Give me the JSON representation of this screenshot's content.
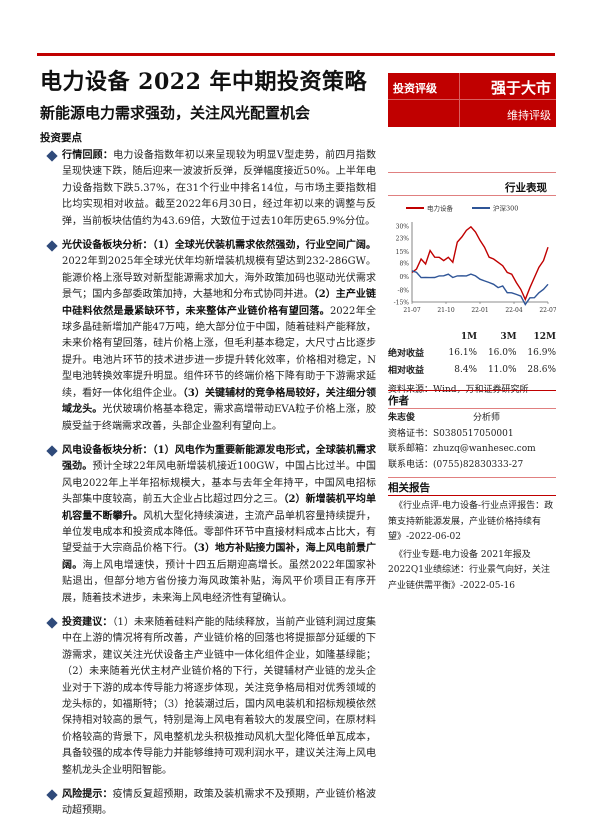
{
  "header": {
    "title": "电力设备 2022 年中期投资策略",
    "subtitle": "新能源电力需求强劲，关注风光配置机会",
    "key_points_label": "投资要点"
  },
  "rating": {
    "label": "投资评级",
    "value": "强于大市",
    "status": "维持评级"
  },
  "paragraphs": [
    {
      "segments": [
        {
          "t": "行情回顾：",
          "b": true
        },
        {
          "t": "电力设备指数年初以来呈现较为明显V型走势，前四月指数呈现快速下跌，随后迎来一波波折反弹，反弹幅度接近50%。上半年电力设备指数下跌5.37%，在31个行业中排名14位，与市场主要指数相比均实现相对收益。截至2022年6月30日，经过年初以来的调整与反弹，当前板块估值约为43.69倍，大致位于过去10年历史65.9%分位。",
          "b": false
        }
      ]
    },
    {
      "segments": [
        {
          "t": "光伏设备板块分析：（1）全球光伏装机需求依然强劲，行业空间广阔。",
          "b": true
        },
        {
          "t": "2022年到2025年全球光伏年均新增装机规模有望达到232-286GW。能源价格上涨导致对新型能源需求加大，海外政策加码也驱动光伏需求景气；国内多部委政策加持，大基地和分布式协同并进。",
          "b": false
        },
        {
          "t": "（2）主产业链中硅料依然是最紧缺环节，未来整体产业链价格有望回落。",
          "b": true
        },
        {
          "t": "2022年全球多晶硅新增加产能47万吨，绝大部分位于中国，随着硅料产能释放，未来价格有望回落，硅片价格上涨，但毛利基本稳定，大尺寸占比逐步提升。电池片环节的技术进步进一步提升转化效率，价格相对稳定，N型电池转换效率提升明显。组件环节的终端价格下降有助于下游需求延续，看好一体化组件企业。",
          "b": false
        },
        {
          "t": "（3）关键辅材的竞争格局较好，关注细分领域龙头。",
          "b": true
        },
        {
          "t": "光伏玻璃价格基本稳定，需求高增带动EVA粒子价格上涨，胶膜受益于终端需求改善，头部企业盈利有望向上。",
          "b": false
        }
      ]
    },
    {
      "segments": [
        {
          "t": "风电设备板块分析：（1）风电作为重要新能源发电形式，全球装机需求强劲。",
          "b": true
        },
        {
          "t": "预计全球22年风电新增装机接近100GW，中国占比过半。中国风电2022年上半年招标规模大，基本与去年全年持平，中国风电招标头部集中度较高，前五大企业占比超过四分之三。",
          "b": false
        },
        {
          "t": "（2）新增装机平均单机容量不断攀升。",
          "b": true
        },
        {
          "t": "风机大型化持续演进，主流产品单机容量持续提升，单位发电成本和投资成本降低。零部件环节中直接材料成本占比大，有望受益于大宗商品价格下行。",
          "b": false
        },
        {
          "t": "（3）地方补贴接力国补，海上风电前景广阔。",
          "b": true
        },
        {
          "t": "海上风电增速快，预计十四五后期迎高增长。虽然2022年国家补贴退出，但部分地方省份接力海风政策补贴，海风平价项目正有序开展，随着技术进步，未来海上风电经济性有望确认。",
          "b": false
        }
      ]
    },
    {
      "segments": [
        {
          "t": "投资建议：",
          "b": true
        },
        {
          "t": "（1）未来随着硅料产能的陆续释放，当前产业链利润过度集中在上游的情况将有所改善，产业链价格的回落也将提振部分延缓的下游需求，建议关注光伏设备主产业链中一体化组件企业，如隆基绿能；（2）未来随着光伏主材产业链价格的下行，关键辅材产业链的龙头企业对于下游的成本传导能力将逐步体现，关注竞争格局相对优秀领域的龙头标的，如福斯特；（3）抢装潮过后，国内风电装机和招标规模依然保持相对较高的景气，特别是海上风电有着较大的发展空间，在原材料价格较高的背景下，风电整机龙头积极推动风机大型化降低单瓦成本，具备较强的成本传导能力并能够维持可观利润水平，建议关注海上风电整机龙头企业明阳智能。",
          "b": false
        }
      ]
    },
    {
      "segments": [
        {
          "t": "风险提示：",
          "b": true
        },
        {
          "t": "疫情反复超预期，政策及装机需求不及预期，产业链价格波动超预期。",
          "b": false
        }
      ]
    }
  ],
  "performance": {
    "heading": "行业表现",
    "chart_data": {
      "type": "line",
      "yticks": [
        "30%",
        "23%",
        "15%",
        "8%",
        "0%",
        "-8%",
        "-15%"
      ],
      "ylim": [
        -15,
        30
      ],
      "xticks": [
        "21-07",
        "21-10",
        "22-01",
        "22-04",
        "22-07"
      ],
      "legend_position": "top",
      "series": [
        {
          "name": "电力设备",
          "color": "#c00000",
          "values": [
            2,
            5,
            10,
            8,
            15,
            12,
            11,
            10,
            11,
            9,
            20,
            24,
            27,
            30,
            26,
            22,
            17,
            12,
            10,
            9,
            6,
            3,
            1,
            -3,
            -8,
            -13,
            -7,
            0,
            5,
            10,
            17
          ]
        },
        {
          "name": "沪深300",
          "color": "#2f5597",
          "values": [
            3,
            3,
            -1,
            0,
            -1,
            0,
            0,
            1,
            1,
            0,
            0,
            1,
            0,
            2,
            0,
            -1,
            -3,
            -3,
            -5,
            -6,
            -6,
            -9,
            -10,
            -10,
            -12,
            -16,
            -13,
            -12,
            -10,
            -7,
            -5
          ]
        }
      ]
    },
    "table": {
      "headers": [
        "",
        "1M",
        "3M",
        "12M"
      ],
      "rows": [
        [
          "绝对收益",
          "16.1%",
          "16.0%",
          "16.9%"
        ],
        [
          "相对收益",
          "8.4%",
          "11.0%",
          "28.6%"
        ]
      ]
    },
    "source": "资料来源：Wind，万和证券研究所"
  },
  "author": {
    "heading": "作者",
    "name": "朱志俊",
    "role": "分析师",
    "cert": "资格证书：S0380517050001",
    "email": "联系邮箱：zhuzq@wanhesec.com",
    "phone": "联系电话：(0755)82830333-27"
  },
  "related": {
    "heading": "相关报告",
    "items": [
      "《行业点评-电力设备-行业点评报告：政策支持新能源发展，产业链价格持续有望》-2022-06-02",
      "《行业专题-电力设备 2021年报及2022Q1业绩综述：行业景气向好，关注产业链供需平衡》-2022-05-16"
    ]
  }
}
